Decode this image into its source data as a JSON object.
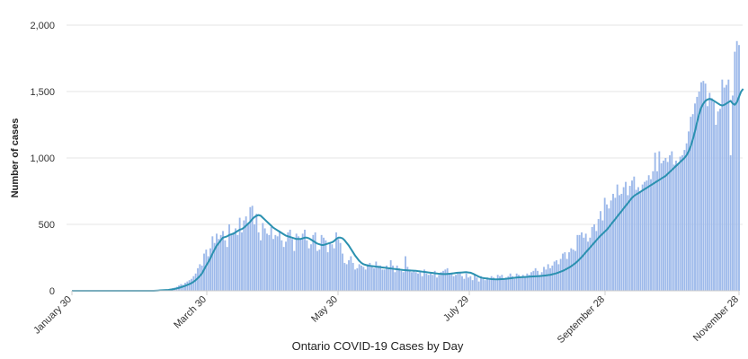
{
  "chart_data": {
    "type": "bar",
    "title": "",
    "xlabel": "Ontario COVID-19 Cases by Day",
    "ylabel": "Number of cases",
    "ylim": [
      0,
      2000
    ],
    "yticks": [
      0,
      500,
      1000,
      1500,
      2000
    ],
    "ytick_labels": [
      "0",
      "500",
      "1,000",
      "1,500",
      "2,000"
    ],
    "x_start_label": "January 30",
    "x_tick_labels": [
      "January 30",
      "March 30",
      "May 30",
      "July 29",
      "September 28",
      "November 28"
    ],
    "grid": true,
    "bar_color": "#9db9ea",
    "line_color": "#2b91b0",
    "series": [
      {
        "name": "",
        "kind": "bar",
        "values": [
          0,
          0,
          0,
          0,
          0,
          0,
          0,
          0,
          0,
          0,
          0,
          0,
          0,
          0,
          0,
          0,
          0,
          0,
          0,
          0,
          0,
          0,
          0,
          0,
          0,
          0,
          0,
          0,
          0,
          0,
          0,
          0,
          0,
          0,
          0,
          0,
          0,
          0,
          0,
          0,
          3,
          5,
          4,
          3,
          6,
          8,
          10,
          14,
          20,
          24,
          30,
          40,
          50,
          45,
          60,
          70,
          80,
          90,
          110,
          130,
          170,
          200,
          190,
          280,
          310,
          260,
          320,
          410,
          360,
          430,
          390,
          420,
          450,
          380,
          330,
          500,
          420,
          440,
          470,
          420,
          550,
          440,
          530,
          560,
          510,
          630,
          640,
          500,
          580,
          440,
          380,
          510,
          470,
          430,
          420,
          480,
          390,
          420,
          410,
          450,
          380,
          330,
          370,
          440,
          460,
          390,
          300,
          430,
          410,
          390,
          430,
          460,
          380,
          320,
          350,
          420,
          440,
          300,
          310,
          420,
          400,
          380,
          290,
          360,
          350,
          320,
          440,
          390,
          360,
          280,
          210,
          200,
          230,
          260,
          210,
          160,
          170,
          200,
          190,
          180,
          160,
          200,
          210,
          180,
          170,
          220,
          190,
          190,
          160,
          160,
          190,
          170,
          230,
          190,
          140,
          190,
          170,
          150,
          140,
          260,
          180,
          160,
          140,
          150,
          140,
          130,
          140,
          110,
          160,
          130,
          120,
          130,
          120,
          150,
          100,
          120,
          140,
          150,
          160,
          170,
          130,
          130,
          110,
          120,
          130,
          140,
          110,
          90,
          130,
          100,
          110,
          80,
          120,
          100,
          70,
          110,
          90,
          80,
          100,
          90,
          110,
          100,
          80,
          120,
          110,
          120,
          90,
          100,
          110,
          130,
          110,
          90,
          130,
          120,
          100,
          120,
          110,
          130,
          120,
          140,
          150,
          170,
          150,
          120,
          140,
          180,
          160,
          200,
          170,
          190,
          220,
          230,
          200,
          240,
          280,
          290,
          240,
          290,
          320,
          310,
          300,
          420,
          420,
          440,
          400,
          430,
          370,
          400,
          480,
          500,
          450,
          540,
          600,
          530,
          700,
          650,
          620,
          680,
          730,
          700,
          800,
          720,
          730,
          780,
          820,
          720,
          790,
          830,
          860,
          760,
          780,
          750,
          800,
          820,
          830,
          870,
          840,
          900,
          1040,
          900,
          1050,
          960,
          980,
          1000,
          970,
          1020,
          1050,
          950,
          980,
          960,
          1010,
          1020,
          1060,
          1110,
          1200,
          1310,
          1330,
          1410,
          1460,
          1500,
          1570,
          1580,
          1560,
          1390,
          1490,
          1450,
          1420,
          1250,
          1350,
          1370,
          1590,
          1530,
          1550,
          1590,
          1020,
          1470,
          1800,
          1880,
          1850
        ]
      },
      {
        "name": "",
        "kind": "line",
        "description_points": "7-day average",
        "values": [
          0,
          0,
          0,
          0,
          0,
          0,
          0,
          0,
          0,
          0,
          0,
          0,
          0,
          0,
          0,
          0,
          0,
          0,
          0,
          0,
          0,
          0,
          0,
          0,
          0,
          0,
          0,
          0,
          0,
          0,
          0,
          0,
          0,
          0,
          0,
          0,
          0,
          0,
          0,
          0,
          1,
          2,
          3,
          4,
          5,
          6,
          7,
          9,
          11,
          14,
          18,
          22,
          27,
          32,
          38,
          44,
          50,
          58,
          68,
          80,
          95,
          112,
          130,
          160,
          190,
          215,
          245,
          280,
          310,
          340,
          360,
          380,
          400,
          405,
          410,
          420,
          425,
          430,
          440,
          450,
          460,
          465,
          475,
          490,
          505,
          520,
          540,
          555,
          565,
          570,
          565,
          550,
          535,
          520,
          505,
          490,
          475,
          465,
          455,
          445,
          435,
          425,
          415,
          410,
          405,
          400,
          395,
          390,
          390,
          390,
          395,
          400,
          400,
          395,
          385,
          375,
          365,
          355,
          350,
          345,
          345,
          350,
          355,
          360,
          365,
          375,
          390,
          400,
          400,
          395,
          380,
          360,
          340,
          315,
          290,
          265,
          245,
          225,
          210,
          200,
          195,
          190,
          188,
          186,
          184,
          182,
          180,
          178,
          176,
          174,
          172,
          170,
          168,
          166,
          164,
          162,
          160,
          158,
          156,
          155,
          154,
          153,
          152,
          151,
          150,
          148,
          146,
          144,
          142,
          140,
          138,
          136,
          134,
          132,
          130,
          128,
          127,
          126,
          126,
          127,
          128,
          130,
          132,
          134,
          136,
          137,
          138,
          139,
          140,
          138,
          136,
          130,
          122,
          114,
          106,
          100,
          96,
          94,
          92,
          90,
          88,
          87,
          86,
          86,
          87,
          88,
          89,
          90,
          92,
          94,
          96,
          98,
          100,
          101,
          102,
          103,
          104,
          105,
          106,
          107,
          108,
          109,
          110,
          111,
          112,
          114,
          116,
          118,
          120,
          124,
          128,
          132,
          138,
          144,
          150,
          158,
          166,
          175,
          185,
          196,
          208,
          222,
          238,
          254,
          272,
          290,
          308,
          326,
          344,
          362,
          380,
          398,
          415,
          430,
          445,
          460,
          480,
          500,
          520,
          540,
          560,
          580,
          600,
          620,
          640,
          660,
          680,
          700,
          715,
          725,
          735,
          745,
          755,
          765,
          775,
          785,
          795,
          805,
          815,
          825,
          835,
          845,
          855,
          865,
          880,
          895,
          910,
          925,
          940,
          955,
          970,
          985,
          1000,
          1020,
          1050,
          1090,
          1140,
          1200,
          1270,
          1330,
          1380,
          1410,
          1430,
          1440,
          1445,
          1440,
          1430,
          1420,
          1410,
          1400,
          1395,
          1400,
          1410,
          1420,
          1430,
          1410,
          1400,
          1420,
          1460,
          1500,
          1520
        ]
      }
    ]
  }
}
